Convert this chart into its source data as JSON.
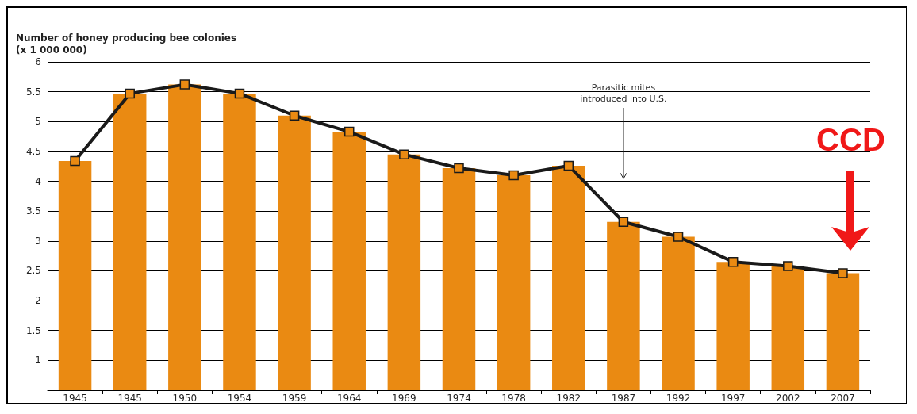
{
  "chart_data": {
    "type": "bar",
    "ylabel": "Number of honey producing bee colonies\n(x 1 000 000)",
    "categories": [
      "1945",
      "1945",
      "1950",
      "1954",
      "1959",
      "1964",
      "1969",
      "1974",
      "1978",
      "1982",
      "1987",
      "1992",
      "1997",
      "2002",
      "2007"
    ],
    "series": [
      {
        "type": "bar",
        "color": "#ea8a12",
        "values": [
          4.34,
          5.47,
          5.62,
          5.47,
          5.1,
          4.83,
          4.45,
          4.22,
          4.1,
          4.26,
          3.32,
          3.07,
          2.65,
          2.58,
          2.46
        ]
      },
      {
        "type": "line",
        "color": "#1a1a1a",
        "marker": "square",
        "values": [
          4.34,
          5.47,
          5.62,
          5.47,
          5.1,
          4.83,
          4.45,
          4.22,
          4.1,
          4.26,
          3.32,
          3.07,
          2.65,
          2.58,
          2.46
        ]
      }
    ],
    "ylim": [
      0.5,
      6
    ],
    "yticks": [
      1,
      1.5,
      2,
      2.5,
      3,
      3.5,
      4,
      4.5,
      5,
      5.5,
      6
    ],
    "grid": "y",
    "annotations": [
      "Parasitic mites\nintroduced into U.S.",
      "CCD"
    ]
  }
}
